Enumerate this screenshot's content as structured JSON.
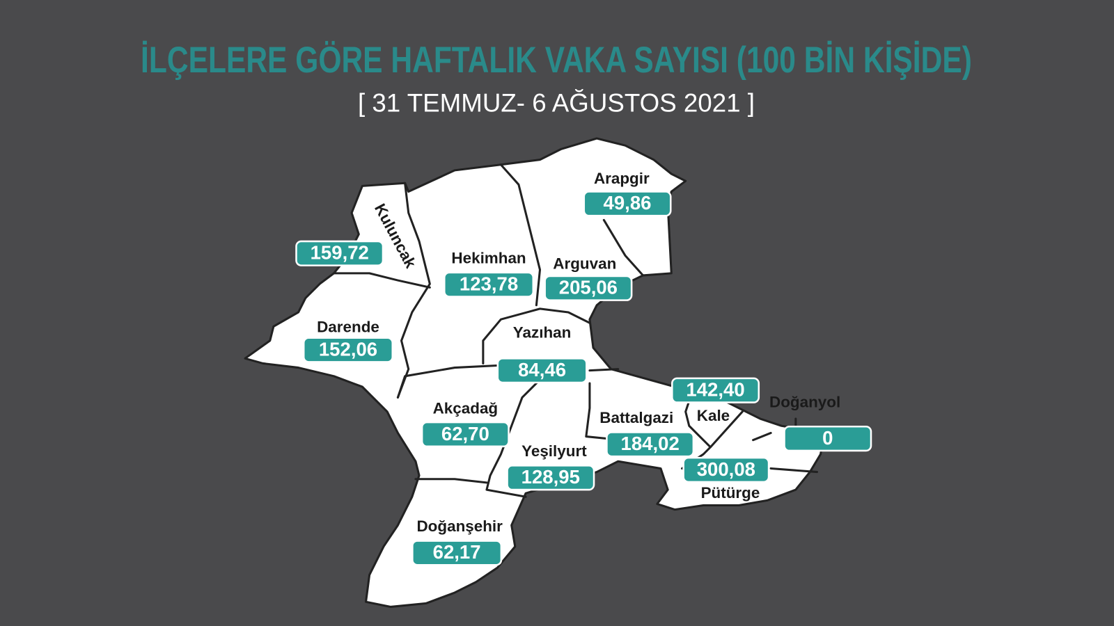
{
  "header": {
    "title": "İLÇELERE GÖRE HAFTALIK VAKA SAYISI (100 BİN KİŞİDE)",
    "subtitle": "[ 31 TEMMUZ- 6 AĞUSTOS 2021 ]"
  },
  "districts": [
    {
      "name": "Arapgir",
      "value": "49,86"
    },
    {
      "name": "Kuluncak",
      "value": "159,72"
    },
    {
      "name": "Hekimhan",
      "value": "123,78"
    },
    {
      "name": "Arguvan",
      "value": "205,06"
    },
    {
      "name": "Darende",
      "value": "152,06"
    },
    {
      "name": "Yazıhan",
      "value": "84,46"
    },
    {
      "name": "Kale",
      "value": "142,40"
    },
    {
      "name": "Doğanyol",
      "value": "0"
    },
    {
      "name": "Akçadağ",
      "value": "62,70"
    },
    {
      "name": "Battalgazi",
      "value": "184,02"
    },
    {
      "name": "Yeşilyurt",
      "value": "128,95"
    },
    {
      "name": "Pütürge",
      "value": "300,08"
    },
    {
      "name": "Doğanşehir",
      "value": "62,17"
    }
  ]
}
